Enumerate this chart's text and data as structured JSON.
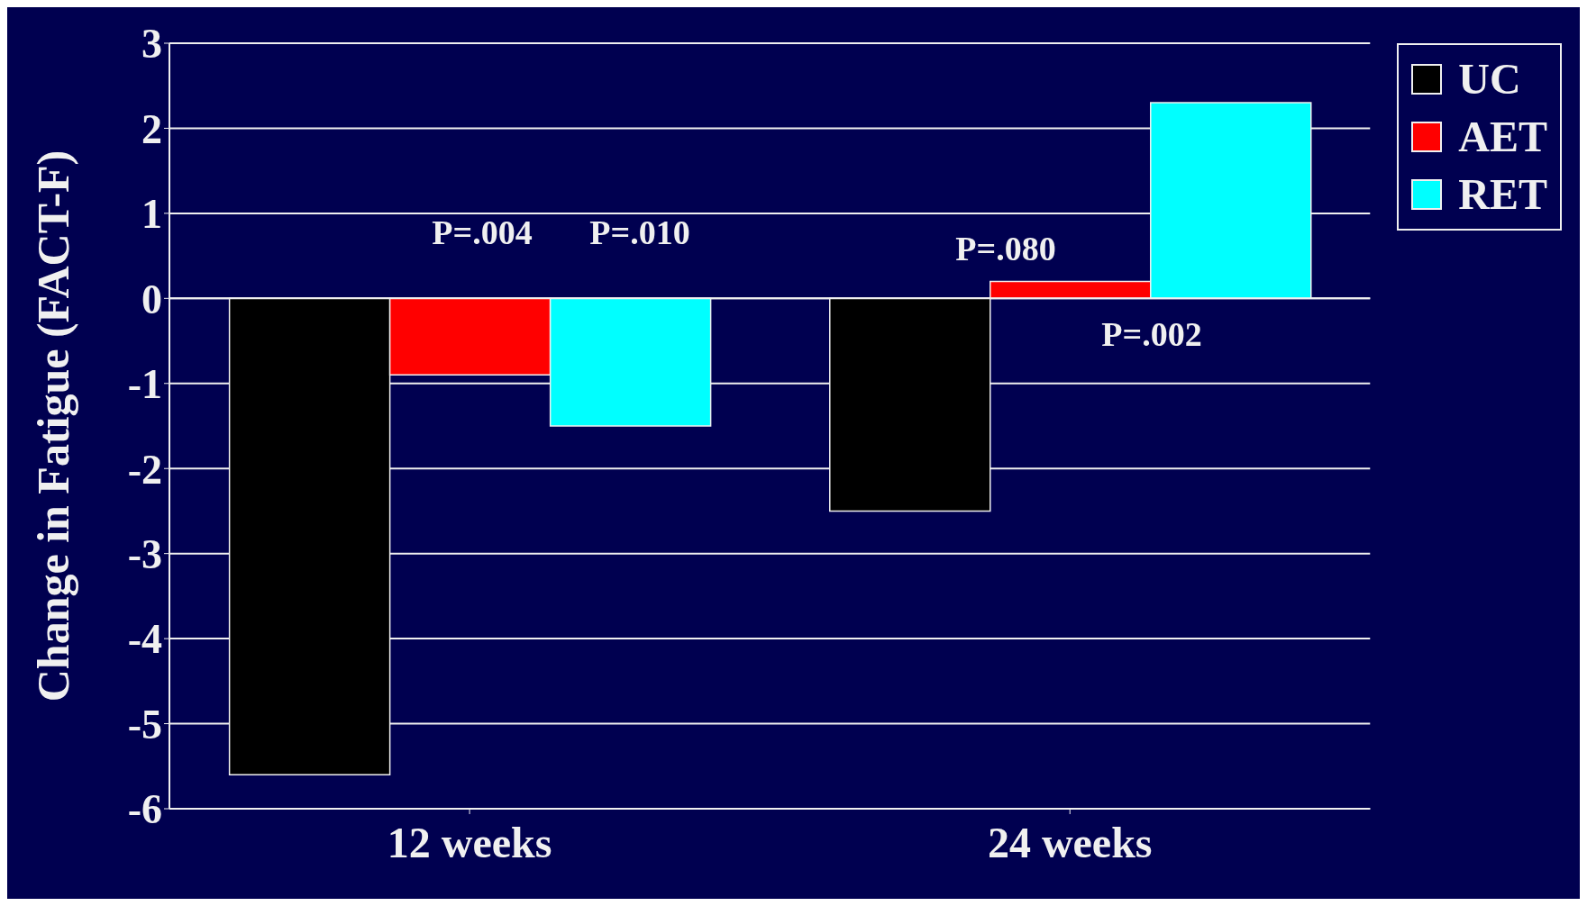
{
  "chart_data": {
    "type": "bar",
    "ylabel": "Change in Fatigue (FACT-F)",
    "categories": [
      "12 weeks",
      "24 weeks"
    ],
    "series": [
      {
        "name": "UC",
        "color": "#000000",
        "values": [
          -5.6,
          -2.5
        ]
      },
      {
        "name": "AET",
        "color": "#ff0000",
        "values": [
          -0.9,
          0.2
        ]
      },
      {
        "name": "RET",
        "color": "#00ffff",
        "values": [
          -1.5,
          2.3
        ]
      }
    ],
    "annotations": [
      "P=.004",
      "P=.010",
      "P=.080",
      "P=.002"
    ],
    "ylim": [
      -6,
      3
    ],
    "yticks": [
      -6,
      -5,
      -4,
      -3,
      -2,
      -1,
      0,
      1,
      2,
      3
    ],
    "grid": "y",
    "legend": "top right"
  }
}
